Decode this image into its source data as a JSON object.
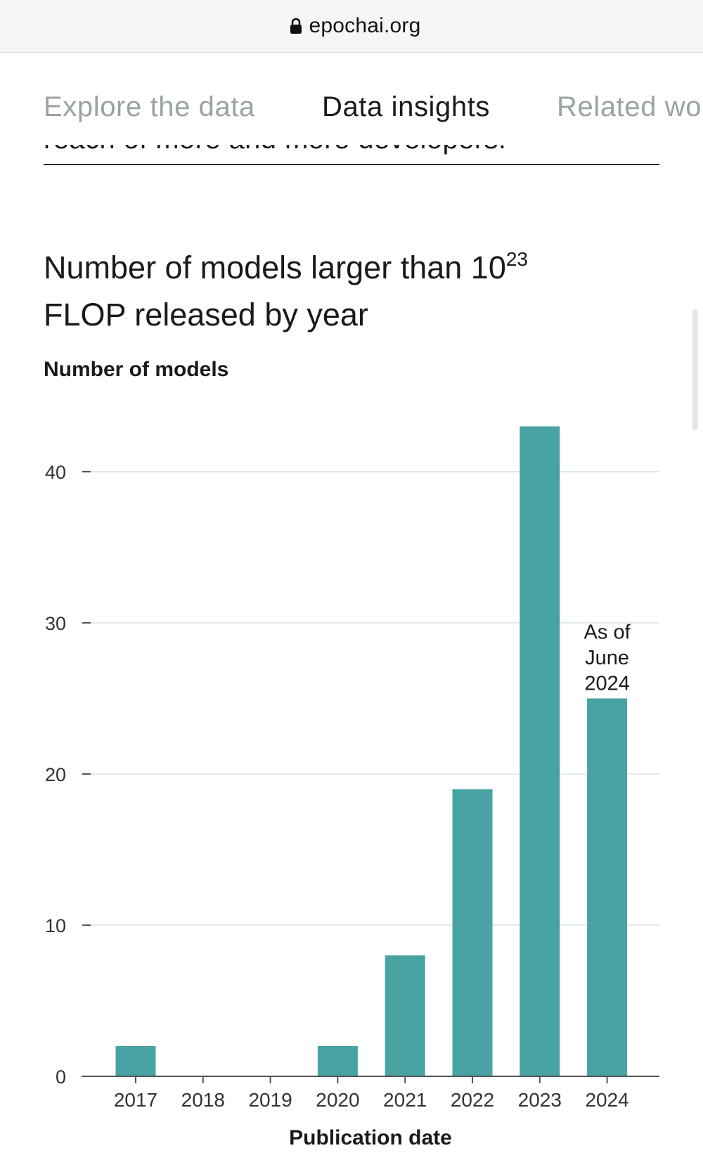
{
  "browser": {
    "url": "epochai.org",
    "lock_icon": "lock-icon"
  },
  "tabs": [
    {
      "label": "Explore the data",
      "active": false
    },
    {
      "label": "Data insights",
      "active": true
    },
    {
      "label": "Related wo",
      "active": false
    }
  ],
  "cut_off_text": "reach of more and more developers.",
  "title": {
    "line1_prefix": "Number of models larger than 10",
    "exponent": "23",
    "line2": "FLOP released by year"
  },
  "chart_data": {
    "type": "bar",
    "ylabel": "Number of models",
    "xlabel": "Publication date",
    "categories": [
      "2017",
      "2018",
      "2019",
      "2020",
      "2021",
      "2022",
      "2023",
      "2024"
    ],
    "values": [
      2,
      0,
      0,
      2,
      8,
      19,
      43,
      25
    ],
    "ylim": [
      0,
      45
    ],
    "yticks": [
      0,
      10,
      20,
      30,
      40
    ],
    "grid": true,
    "annotation": {
      "category": "2024",
      "lines": [
        "As of",
        "June",
        "2024"
      ]
    },
    "bar_color": "#4aa3a3",
    "grid_color": "#e4eaea",
    "axis_color": "#555555"
  }
}
